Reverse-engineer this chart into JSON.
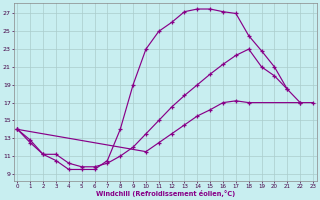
{
  "bg_color": "#c8eef0",
  "line_color": "#880088",
  "grid_color": "#aacccc",
  "xlabel": "Windchill (Refroidissement éolien,°C)",
  "xticks": [
    0,
    1,
    2,
    3,
    4,
    5,
    6,
    7,
    8,
    9,
    10,
    11,
    12,
    13,
    14,
    15,
    16,
    17,
    18,
    19,
    20,
    21,
    22,
    23
  ],
  "yticks": [
    9,
    11,
    13,
    15,
    17,
    19,
    21,
    23,
    25,
    27
  ],
  "curve1_x": [
    0,
    1,
    2,
    3,
    4,
    5,
    6,
    7,
    8,
    9,
    10,
    11,
    12,
    13,
    14,
    15,
    16,
    17,
    18,
    19,
    20,
    21
  ],
  "curve1_y": [
    14.0,
    12.8,
    11.2,
    10.5,
    9.5,
    9.5,
    9.5,
    10.5,
    14.0,
    19.0,
    23.0,
    25.0,
    26.0,
    27.2,
    27.5,
    27.5,
    27.2,
    27.0,
    24.5,
    22.8,
    21.0,
    18.5
  ],
  "curve2_x": [
    0,
    1,
    2,
    3,
    4,
    5,
    6,
    7,
    8,
    9,
    10,
    11,
    12,
    13,
    14,
    15,
    16,
    17,
    18,
    19,
    20,
    21,
    22
  ],
  "curve2_y": [
    14.0,
    12.5,
    11.2,
    11.2,
    10.2,
    9.8,
    9.8,
    10.2,
    11.0,
    12.0,
    13.5,
    15.0,
    16.5,
    17.8,
    19.0,
    20.2,
    21.3,
    22.3,
    23.0,
    21.0,
    20.0,
    18.5,
    17.0
  ],
  "curve3_x": [
    0,
    10,
    11,
    12,
    13,
    14,
    15,
    16,
    17,
    18,
    22,
    23
  ],
  "curve3_y": [
    14.0,
    11.5,
    12.5,
    13.5,
    14.5,
    15.5,
    16.2,
    17.0,
    17.2,
    17.0,
    17.0,
    17.0
  ]
}
